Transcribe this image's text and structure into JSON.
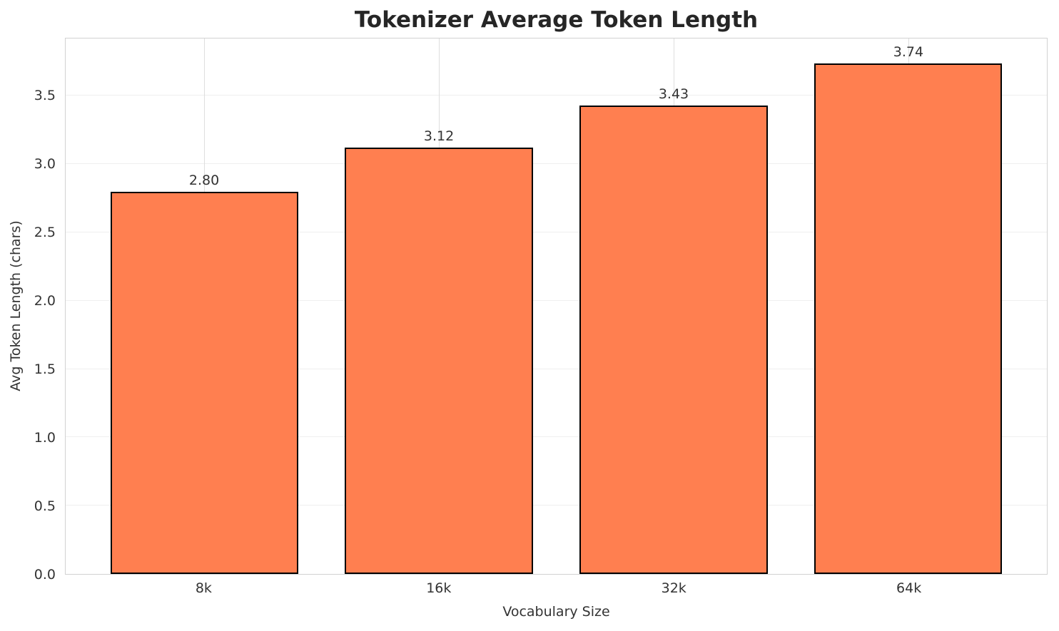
{
  "figure": {
    "background": "#ffffff"
  },
  "chart_data": {
    "type": "bar",
    "title": "Tokenizer Average Token Length",
    "xlabel": "Vocabulary Size",
    "ylabel": "Avg Token Length (chars)",
    "categories": [
      "8k",
      "16k",
      "32k",
      "64k"
    ],
    "values": [
      2.8,
      3.12,
      3.43,
      3.74
    ],
    "value_labels": [
      "2.80",
      "3.12",
      "3.43",
      "3.74"
    ],
    "yticks": [
      0.0,
      0.5,
      1.0,
      1.5,
      2.0,
      2.5,
      3.0,
      3.5
    ],
    "ytick_labels": [
      "0.0",
      "0.5",
      "1.0",
      "1.5",
      "2.0",
      "2.5",
      "3.0",
      "3.5"
    ],
    "ylim": [
      0,
      3.92
    ],
    "grid": "both",
    "legend": "none",
    "colors": {
      "bar_fill": "#FF7F50",
      "bar_edge": "#000000",
      "h_grid": "#efefef",
      "v_grid": "#dedede",
      "spine": "#d2d2d2",
      "text": "#333333",
      "title": "#262626"
    }
  }
}
